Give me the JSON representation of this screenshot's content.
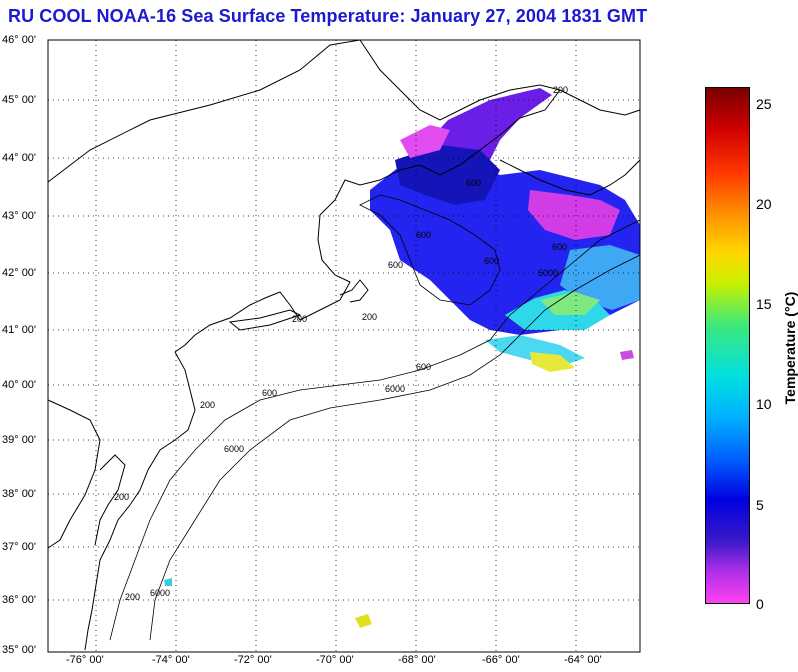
{
  "title": "RU COOL  NOAA-16  Sea Surface Temperature:  January 27, 2004 1831 GMT",
  "map": {
    "lat_labels": [
      "46° 00'",
      "45° 00'",
      "44° 00'",
      "43° 00'",
      "42° 00'",
      "41° 00'",
      "40° 00'",
      "39° 00'",
      "38° 00'",
      "37° 00'",
      "36° 00'",
      "35° 00'"
    ],
    "lon_labels": [
      "-76° 00'",
      "-74° 00'",
      "-72° 00'",
      "-70° 00'",
      "-68° 00'",
      "-66° 00'",
      "-64° 00'"
    ],
    "contour_labels": [
      "200",
      "600",
      "600",
      "600",
      "600",
      "6000",
      "600",
      "6000",
      "200",
      "200",
      "600",
      "6000",
      "600",
      "200",
      "200",
      "6000",
      "200"
    ],
    "colors": {
      "land_line": "#000000",
      "grid": "#000000",
      "background": "#ffffff"
    }
  },
  "colorbar": {
    "title": "Temperature (°C)",
    "tick_labels": [
      "25",
      "20",
      "15",
      "10",
      "5",
      "0"
    ],
    "range": [
      0,
      26
    ]
  }
}
